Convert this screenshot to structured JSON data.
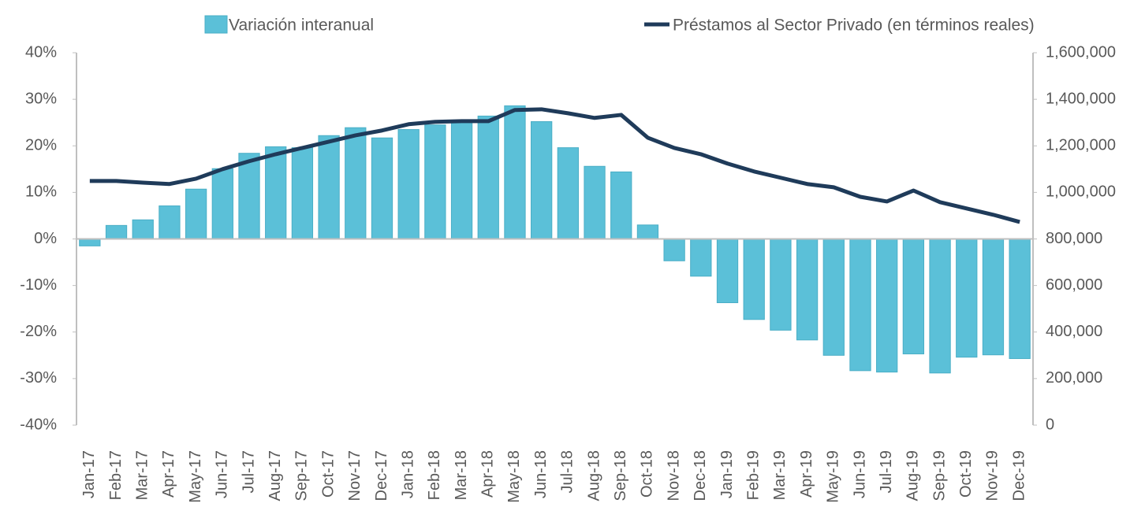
{
  "chart_data": {
    "type": "bar_line",
    "categories": [
      "Jan-17",
      "Feb-17",
      "Mar-17",
      "Apr-17",
      "May-17",
      "Jun-17",
      "Jul-17",
      "Aug-17",
      "Sep-17",
      "Oct-17",
      "Nov-17",
      "Dec-17",
      "Jan-18",
      "Feb-18",
      "Mar-18",
      "Apr-18",
      "May-18",
      "Jun-18",
      "Jul-18",
      "Aug-18",
      "Sep-18",
      "Oct-18",
      "Nov-18",
      "Dec-18",
      "Jan-19",
      "Feb-19",
      "Mar-19",
      "Apr-19",
      "May-19",
      "Jun-19",
      "Jul-19",
      "Aug-19",
      "Sep-19",
      "Oct-19",
      "Nov-19",
      "Dec-19"
    ],
    "series": [
      {
        "name": "Variación interanual",
        "type": "bar",
        "color": "#5bc0d8",
        "axis": "y",
        "values": [
          -1.5,
          2.9,
          4.1,
          7.1,
          10.7,
          15.1,
          18.4,
          19.8,
          19.6,
          22.2,
          23.9,
          21.7,
          23.5,
          24.5,
          25.5,
          26.4,
          28.6,
          25.2,
          19.6,
          15.6,
          14.4,
          3.0,
          -4.7,
          -8.0,
          -13.7,
          -17.3,
          -19.6,
          -21.7,
          -25.0,
          -28.3,
          -28.6,
          -24.7,
          -28.8,
          -25.4,
          -24.9,
          -25.7
        ]
      },
      {
        "name": "Préstamos al Sector Privado (en términos reales)",
        "type": "line",
        "color": "#1f3b5a",
        "axis": "y2",
        "values": [
          1049000,
          1049000,
          1042000,
          1036000,
          1059000,
          1100000,
          1134000,
          1164000,
          1191000,
          1218000,
          1245000,
          1266000,
          1293000,
          1303000,
          1306000,
          1306000,
          1354000,
          1357000,
          1340000,
          1320000,
          1333000,
          1235000,
          1191000,
          1164000,
          1124000,
          1090000,
          1063000,
          1036000,
          1022000,
          981000,
          961000,
          1008000,
          958000,
          931000,
          904000,
          873000
        ]
      }
    ],
    "ylim": [
      -40,
      40
    ],
    "yticks": [
      {
        "value": -40,
        "label": "-40%"
      },
      {
        "value": -30,
        "label": "-30%"
      },
      {
        "value": -20,
        "label": "-20%"
      },
      {
        "value": -10,
        "label": "-10%"
      },
      {
        "value": 0,
        "label": "0%"
      },
      {
        "value": 10,
        "label": "10%"
      },
      {
        "value": 20,
        "label": "20%"
      },
      {
        "value": 30,
        "label": "30%"
      },
      {
        "value": 40,
        "label": "40%"
      }
    ],
    "y2lim": [
      0,
      1600000
    ],
    "y2ticks": [
      0,
      {
        "value": 200000,
        "label": "200,000"
      },
      {
        "value": 400000,
        "label": "400,000"
      },
      {
        "value": 600000,
        "label": "600,000"
      },
      {
        "value": 800000,
        "label": "800,000"
      },
      {
        "value": 1000000,
        "label": "1,000,000"
      },
      {
        "value": 1200000,
        "label": "1,200,000"
      },
      {
        "value": 1400000,
        "label": "1,400,000"
      },
      {
        "value": 1600000,
        "label": "1,600,000"
      }
    ],
    "grid": false
  }
}
